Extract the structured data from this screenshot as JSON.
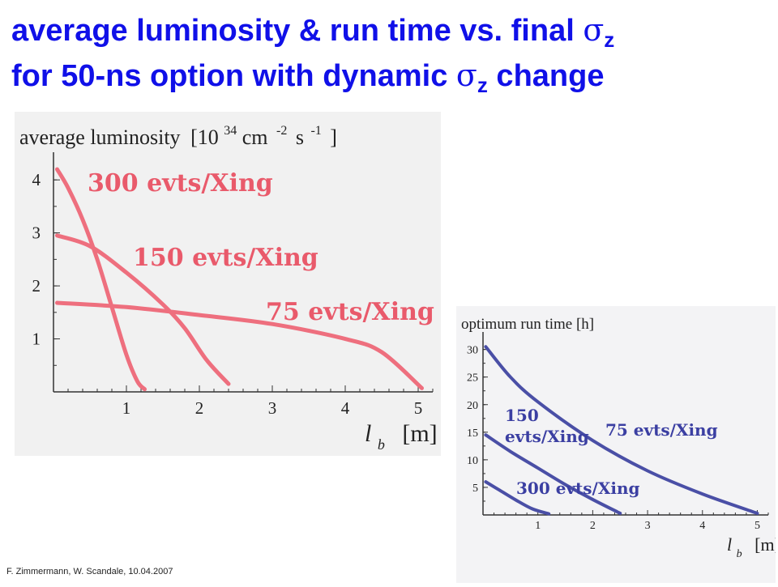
{
  "title": {
    "line1_text": "average luminosity & run time vs. final ",
    "line1_sigma": "σ",
    "line1_sub": "z",
    "line2_text": "for 50-ns option with dynamic ",
    "line2_sigma": "σ",
    "line2_sub": "z",
    "line2_end": " change",
    "color": "#1010e8"
  },
  "footer": "F.  Zimmermann,  W. Scandale, 10.04.2007",
  "chart_data": [
    {
      "type": "line",
      "ylabel": "average luminosity [10^34 cm^-2 s^-1]",
      "ylabel_parts": {
        "main": "average luminosity",
        "lb": "[10",
        "exp1": "34",
        "cm": "cm",
        "exp2": "-2",
        "s": "s",
        "exp3": "-1",
        "rb": "]"
      },
      "xlabel_parts": {
        "sym": "l",
        "sub": "b",
        "unit": "[m]"
      },
      "xlim": [
        0,
        5.2
      ],
      "ylim": [
        0,
        4.4
      ],
      "xticks": [
        "1",
        "2",
        "3",
        "4",
        "5"
      ],
      "yticks": [
        "1",
        "2",
        "3",
        "4"
      ],
      "color": "#ee6f7e",
      "series": [
        {
          "name": "300 evts/Xing",
          "x": [
            0.05,
            0.2,
            0.4,
            0.6,
            0.8,
            1.0,
            1.15,
            1.25
          ],
          "y": [
            4.2,
            3.85,
            3.25,
            2.5,
            1.6,
            0.7,
            0.2,
            0.05
          ]
        },
        {
          "name": "150 evts/Xing",
          "x": [
            0.05,
            0.5,
            1.0,
            1.5,
            1.8,
            2.1,
            2.4
          ],
          "y": [
            2.95,
            2.75,
            2.25,
            1.65,
            1.2,
            0.6,
            0.15
          ]
        },
        {
          "name": "75 evts/Xing",
          "x": [
            0.05,
            1.0,
            2.0,
            3.0,
            4.0,
            4.5,
            5.05
          ],
          "y": [
            1.68,
            1.6,
            1.45,
            1.28,
            1.0,
            0.75,
            0.07
          ]
        }
      ]
    },
    {
      "type": "line",
      "ylabel": "optimum run time [h]",
      "xlabel_parts": {
        "sym": "l",
        "sub": "b",
        "unit": "[m]"
      },
      "xlim": [
        0,
        5.2
      ],
      "ylim": [
        0,
        32
      ],
      "xticks": [
        "1",
        "2",
        "3",
        "4",
        "5"
      ],
      "yticks": [
        "5",
        "10",
        "15",
        "20",
        "25",
        "30"
      ],
      "color": "#4a4fa6",
      "series": [
        {
          "name": "75 evts/Xing",
          "x": [
            0.05,
            0.5,
            1.0,
            2.0,
            3.0,
            4.0,
            5.0
          ],
          "y": [
            30.5,
            25.0,
            20.5,
            13.5,
            8.0,
            3.8,
            0.3
          ]
        },
        {
          "name": "150 evts/Xing",
          "x": [
            0.05,
            0.5,
            1.0,
            1.5,
            2.0,
            2.5
          ],
          "y": [
            14.5,
            11.5,
            8.5,
            5.5,
            2.8,
            0.3
          ]
        },
        {
          "name": "300 evts/Xing",
          "x": [
            0.05,
            0.3,
            0.6,
            0.9,
            1.2
          ],
          "y": [
            6.0,
            4.5,
            2.7,
            1.1,
            0.2
          ]
        }
      ]
    }
  ]
}
